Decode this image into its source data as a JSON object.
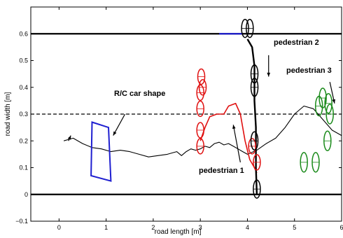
{
  "chart_data": {
    "type": "line",
    "title": "",
    "xlabel": "road length [m]",
    "ylabel": "road width [m]",
    "xlim": [
      -0.6,
      6.0
    ],
    "ylim": [
      -0.1,
      0.7
    ],
    "xticks": [
      0,
      1,
      2,
      3,
      4,
      5,
      6
    ],
    "yticks": [
      -0.1,
      0,
      0.1,
      0.2,
      0.3,
      0.4,
      0.5,
      0.6
    ],
    "xtick_labels": [
      "0",
      "1",
      "2",
      "3",
      "4",
      "5",
      "6"
    ],
    "ytick_labels": [
      "−0.1",
      "0",
      "0.1",
      "0.2",
      "0.3",
      "0.4",
      "0.5",
      "0.6"
    ],
    "grid": false,
    "road_edges": [
      0,
      0.6
    ],
    "centerline": 0.3,
    "colors": {
      "road": "#000000",
      "car": "#1f1fd0",
      "pedestrian1": "#e01010",
      "pedestrian2": "#000000",
      "pedestrian3": "#1a8a1a",
      "path": "#000000",
      "path_ped1": "#e01010",
      "path_top": "#1f1fd0"
    },
    "car_path": [
      [
        0.1,
        0.2
      ],
      [
        0.3,
        0.21
      ],
      [
        0.5,
        0.19
      ],
      [
        0.7,
        0.175
      ],
      [
        0.9,
        0.17
      ],
      [
        1.1,
        0.16
      ],
      [
        1.3,
        0.165
      ],
      [
        1.5,
        0.16
      ],
      [
        1.7,
        0.15
      ],
      [
        1.9,
        0.14
      ],
      [
        2.1,
        0.145
      ],
      [
        2.3,
        0.15
      ],
      [
        2.5,
        0.16
      ],
      [
        2.6,
        0.145
      ],
      [
        2.7,
        0.16
      ],
      [
        2.8,
        0.17
      ],
      [
        2.9,
        0.165
      ],
      [
        3.0,
        0.17
      ],
      [
        3.1,
        0.18
      ],
      [
        3.2,
        0.175
      ],
      [
        3.3,
        0.19
      ],
      [
        3.4,
        0.195
      ],
      [
        3.5,
        0.185
      ],
      [
        3.6,
        0.19
      ],
      [
        3.7,
        0.18
      ],
      [
        3.8,
        0.17
      ],
      [
        3.9,
        0.16
      ],
      [
        4.0,
        0.15
      ],
      [
        4.2,
        0.165
      ],
      [
        4.4,
        0.19
      ],
      [
        4.6,
        0.21
      ],
      [
        4.8,
        0.25
      ],
      [
        5.0,
        0.3
      ],
      [
        5.2,
        0.33
      ],
      [
        5.4,
        0.32
      ],
      [
        5.6,
        0.28
      ],
      [
        5.8,
        0.24
      ],
      [
        6.0,
        0.22
      ]
    ],
    "ped1_path": [
      [
        3.0,
        0.2
      ],
      [
        3.1,
        0.25
      ],
      [
        3.2,
        0.29
      ],
      [
        3.35,
        0.3
      ],
      [
        3.5,
        0.3
      ],
      [
        3.6,
        0.33
      ],
      [
        3.75,
        0.34
      ],
      [
        3.85,
        0.3
      ],
      [
        3.95,
        0.2
      ],
      [
        4.05,
        0.13
      ],
      [
        4.15,
        0.1
      ],
      [
        4.2,
        0.08
      ]
    ],
    "ped2_path": [
      [
        4.0,
        0.58
      ],
      [
        4.1,
        0.55
      ],
      [
        4.15,
        0.48
      ],
      [
        4.15,
        0.35
      ],
      [
        4.18,
        0.25
      ],
      [
        4.18,
        0.1
      ],
      [
        4.2,
        0.0
      ]
    ],
    "car_shape": [
      [
        0.7,
        0.27
      ],
      [
        1.05,
        0.25
      ],
      [
        1.1,
        0.05
      ],
      [
        0.68,
        0.07
      ]
    ],
    "ped1_ellipses": [
      [
        3.0,
        0.18
      ],
      [
        3.0,
        0.24
      ],
      [
        3.0,
        0.32
      ],
      [
        3.0,
        0.38
      ],
      [
        3.05,
        0.4
      ],
      [
        3.02,
        0.44
      ],
      [
        4.1,
        0.18
      ],
      [
        4.2,
        0.12
      ]
    ],
    "ped2_ellipses": [
      [
        3.95,
        0.62
      ],
      [
        4.05,
        0.62
      ],
      [
        4.15,
        0.45
      ],
      [
        4.15,
        0.4
      ],
      [
        4.15,
        0.2
      ],
      [
        4.2,
        0.02
      ]
    ],
    "ped3_ellipses": [
      [
        5.2,
        0.12
      ],
      [
        5.45,
        0.12
      ],
      [
        5.7,
        0.2
      ],
      [
        5.75,
        0.3
      ],
      [
        5.6,
        0.36
      ],
      [
        5.52,
        0.33
      ],
      [
        5.72,
        0.34
      ]
    ],
    "annotations": [
      {
        "text": "R/C car shape",
        "x": 0.8,
        "y": 0.4
      },
      {
        "text": "pedestrian 2",
        "x": 4.4,
        "y": 0.55
      },
      {
        "text": "pedestrian 3",
        "x": 4.8,
        "y": 0.44
      },
      {
        "text": "pedestrian 1",
        "x": 3.0,
        "y": 0.08
      }
    ]
  }
}
